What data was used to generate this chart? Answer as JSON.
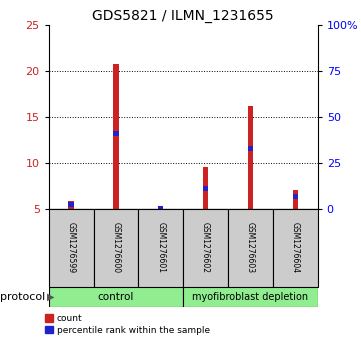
{
  "title": "GDS5821 / ILMN_1231655",
  "samples": [
    "GSM1276599",
    "GSM1276600",
    "GSM1276601",
    "GSM1276602",
    "GSM1276603",
    "GSM1276604"
  ],
  "red_values": [
    5.8,
    20.8,
    5.0,
    9.5,
    16.2,
    7.0
  ],
  "blue_values": [
    5.5,
    13.2,
    5.0,
    7.2,
    11.6,
    6.3
  ],
  "ylim_left": [
    5,
    25
  ],
  "ylim_right": [
    0,
    100
  ],
  "yticks_left": [
    5,
    10,
    15,
    20,
    25
  ],
  "yticks_right": [
    0,
    25,
    50,
    75,
    100
  ],
  "yticklabels_right": [
    "0",
    "25",
    "50",
    "75",
    "100%"
  ],
  "groups": [
    {
      "label": "control",
      "spans": [
        0,
        3
      ],
      "color": "#90EE90"
    },
    {
      "label": "myofibroblast depletion",
      "spans": [
        3,
        6
      ],
      "color": "#90EE90"
    }
  ],
  "protocol_label": "protocol",
  "bar_width": 0.12,
  "blue_bar_height": 0.55,
  "red_color": "#CC2222",
  "blue_color": "#2222CC",
  "bg_color": "#FFFFFF",
  "sample_box_color": "#CCCCCC",
  "legend_red": "count",
  "legend_blue": "percentile rank within the sample",
  "gridline_ticks": [
    10,
    15,
    20
  ],
  "n_samples": 6
}
